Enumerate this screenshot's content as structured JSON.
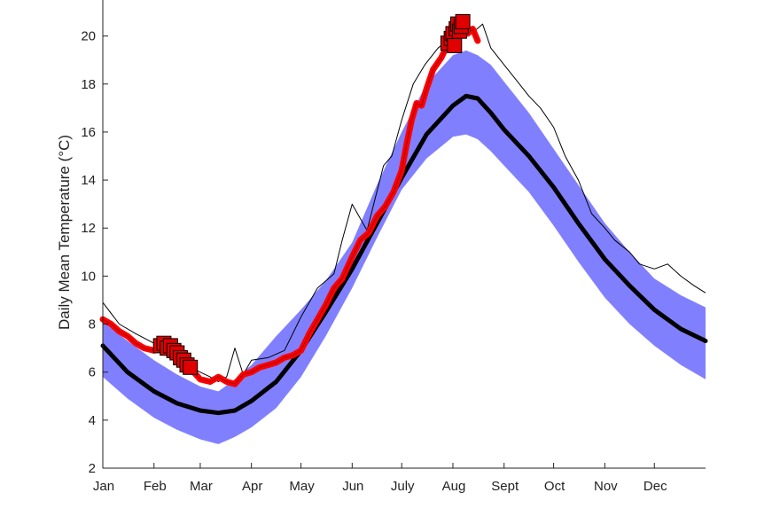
{
  "chart_data": {
    "type": "line",
    "title": "",
    "xlabel": "",
    "ylabel": "Daily Mean Temperature (°C)",
    "xlim": [
      0,
      365
    ],
    "ylim": [
      2,
      21.5
    ],
    "x_ticks": [
      {
        "label": "Jan",
        "day": 0
      },
      {
        "label": "Feb",
        "day": 31
      },
      {
        "label": "Mar",
        "day": 59
      },
      {
        "label": "Apr",
        "day": 90
      },
      {
        "label": "May",
        "day": 120
      },
      {
        "label": "Jun",
        "day": 151
      },
      {
        "label": "July",
        "day": 181
      },
      {
        "label": "Aug",
        "day": 212
      },
      {
        "label": "Sept",
        "day": 243
      },
      {
        "label": "Oct",
        "day": 273
      },
      {
        "label": "Nov",
        "day": 304
      },
      {
        "label": "Dec",
        "day": 334
      }
    ],
    "y_ticks": [
      2,
      4,
      6,
      8,
      10,
      12,
      14,
      16,
      18,
      20
    ],
    "grid": false,
    "legend": "none",
    "colors": {
      "band": "#8080ff",
      "mean": "#000000",
      "max_line": "#000000",
      "current": "#ff0000",
      "marker_fill": "#e00000",
      "marker_edge": "#000000"
    },
    "series": [
      {
        "role": "climatological-range-band",
        "x": [
          0,
          15,
          31,
          45,
          59,
          70,
          80,
          90,
          105,
          120,
          135,
          151,
          166,
          181,
          196,
          212,
          220,
          227,
          235,
          243,
          258,
          273,
          288,
          304,
          319,
          334,
          350,
          365
        ],
        "lower": [
          5.8,
          4.9,
          4.1,
          3.6,
          3.2,
          3.0,
          3.3,
          3.7,
          4.5,
          5.8,
          7.5,
          9.5,
          11.6,
          13.6,
          14.9,
          15.8,
          15.9,
          15.7,
          15.2,
          14.6,
          13.5,
          12.1,
          10.6,
          9.1,
          8.0,
          7.1,
          6.3,
          5.7
        ],
        "upper": [
          8.1,
          7.3,
          6.5,
          5.9,
          5.4,
          5.2,
          5.7,
          6.3,
          7.5,
          8.6,
          9.8,
          11.4,
          13.8,
          16.0,
          18.0,
          19.2,
          19.4,
          19.2,
          18.8,
          18.1,
          16.8,
          15.3,
          13.8,
          12.2,
          11.0,
          9.9,
          9.2,
          8.7
        ]
      },
      {
        "role": "climatological-mean",
        "x": [
          0,
          15,
          31,
          45,
          59,
          70,
          80,
          90,
          105,
          120,
          135,
          151,
          166,
          181,
          196,
          212,
          220,
          227,
          235,
          243,
          258,
          273,
          288,
          304,
          319,
          334,
          350,
          365
        ],
        "y": [
          7.1,
          6.0,
          5.2,
          4.7,
          4.4,
          4.3,
          4.4,
          4.8,
          5.6,
          6.9,
          8.5,
          10.3,
          12.2,
          14.1,
          15.9,
          17.1,
          17.5,
          17.4,
          16.8,
          16.1,
          15.0,
          13.7,
          12.2,
          10.7,
          9.6,
          8.6,
          7.8,
          7.3
        ]
      },
      {
        "role": "climatological-maximum",
        "x": [
          0,
          10,
          20,
          31,
          40,
          50,
          59,
          65,
          70,
          75,
          80,
          85,
          90,
          100,
          110,
          120,
          130,
          140,
          145,
          151,
          160,
          170,
          175,
          181,
          188,
          195,
          203,
          212,
          220,
          225,
          230,
          235,
          243,
          250,
          258,
          265,
          273,
          280,
          288,
          296,
          304,
          310,
          319,
          325,
          334,
          342,
          350,
          358,
          365
        ],
        "y": [
          8.9,
          8.0,
          7.6,
          7.2,
          6.6,
          6.3,
          6.0,
          5.8,
          5.6,
          5.8,
          7.0,
          5.9,
          6.5,
          6.6,
          6.9,
          8.3,
          9.5,
          10.1,
          11.5,
          13.0,
          11.9,
          14.6,
          15.0,
          16.5,
          18.0,
          18.8,
          19.5,
          20.0,
          20.5,
          20.2,
          20.5,
          19.5,
          18.8,
          18.2,
          17.5,
          17.0,
          16.2,
          15.0,
          14.0,
          12.6,
          12.0,
          11.5,
          11.0,
          10.5,
          10.3,
          10.5,
          10.0,
          9.6,
          9.3
        ]
      },
      {
        "role": "current-year",
        "x": [
          0,
          5,
          10,
          15,
          20,
          25,
          31,
          36,
          41,
          46,
          50,
          55,
          59,
          65,
          70,
          75,
          80,
          85,
          90,
          95,
          100,
          105,
          110,
          115,
          120,
          125,
          130,
          135,
          140,
          145,
          151,
          156,
          161,
          166,
          171,
          176,
          181,
          184,
          187,
          190,
          193,
          196,
          200,
          205,
          210,
          212,
          215,
          218,
          221,
          224,
          227
        ],
        "y": [
          8.2,
          8.0,
          7.7,
          7.5,
          7.2,
          7.0,
          6.9,
          7.1,
          6.8,
          6.6,
          6.3,
          6.0,
          5.7,
          5.6,
          5.8,
          5.6,
          5.5,
          5.9,
          6.0,
          6.2,
          6.3,
          6.4,
          6.6,
          6.7,
          6.9,
          7.6,
          8.2,
          8.8,
          9.5,
          9.9,
          10.8,
          11.5,
          11.8,
          12.5,
          12.9,
          13.5,
          14.4,
          15.5,
          16.5,
          17.2,
          17.1,
          17.8,
          18.6,
          19.1,
          19.8,
          20.0,
          20.4,
          20.3,
          20.1,
          20.3,
          19.8
        ]
      },
      {
        "role": "flagged-days",
        "x": [
          35,
          37,
          39,
          41,
          43,
          45,
          47,
          49,
          51,
          53,
          209,
          211,
          212,
          213,
          214,
          215,
          216,
          217,
          218
        ],
        "y": [
          7.1,
          7.2,
          7.0,
          7.1,
          6.9,
          6.8,
          6.6,
          6.5,
          6.3,
          6.2,
          19.7,
          19.9,
          20.1,
          19.6,
          20.3,
          20.5,
          20.2,
          20.4,
          20.6
        ]
      }
    ]
  }
}
